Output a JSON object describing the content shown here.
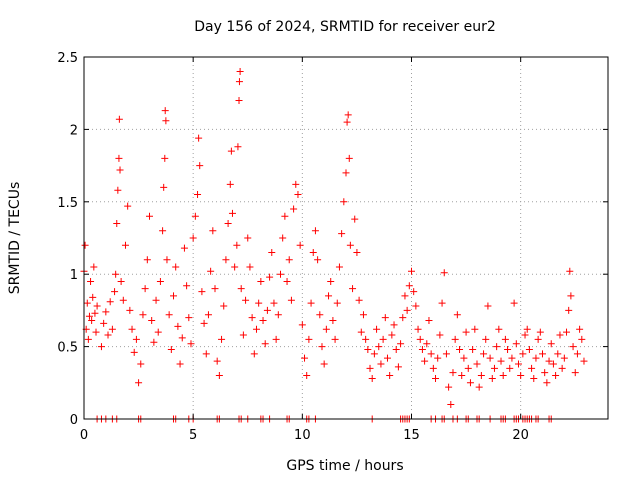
{
  "chart_data": {
    "type": "scatter",
    "title": "Day 156 of 2024, SRMTID for receiver eur2",
    "xlabel": "GPS time / hours",
    "ylabel": "SRMTID / TECUs",
    "xlim": [
      0,
      24
    ],
    "ylim": [
      0,
      2.5
    ],
    "xticks": [
      0,
      5,
      10,
      15,
      20
    ],
    "yticks": [
      0,
      0.5,
      1,
      1.5,
      2,
      2.5
    ],
    "grid": true,
    "marker": "+",
    "color": "#ff0000",
    "series": [
      {
        "name": "SRMTID",
        "points": [
          [
            0.0,
            1.02
          ],
          [
            0.05,
            1.2
          ],
          [
            0.1,
            0.62
          ],
          [
            0.15,
            0.8
          ],
          [
            0.2,
            0.55
          ],
          [
            0.25,
            0.71
          ],
          [
            0.3,
            0.95
          ],
          [
            0.35,
            0.68
          ],
          [
            0.4,
            0.84
          ],
          [
            0.45,
            1.05
          ],
          [
            0.5,
            0.73
          ],
          [
            0.55,
            0.6
          ],
          [
            0.6,
            0.78
          ],
          [
            0.8,
            0.5
          ],
          [
            0.9,
            0.66
          ],
          [
            1.0,
            0.74
          ],
          [
            1.1,
            0.58
          ],
          [
            1.2,
            0.81
          ],
          [
            1.3,
            0.62
          ],
          [
            1.4,
            0.88
          ],
          [
            1.45,
            1.0
          ],
          [
            1.5,
            1.35
          ],
          [
            1.55,
            1.58
          ],
          [
            1.6,
            1.8
          ],
          [
            1.62,
            2.07
          ],
          [
            1.65,
            1.72
          ],
          [
            1.7,
            0.95
          ],
          [
            1.8,
            0.82
          ],
          [
            1.9,
            1.2
          ],
          [
            2.0,
            1.47
          ],
          [
            2.1,
            0.75
          ],
          [
            2.2,
            0.62
          ],
          [
            2.3,
            0.46
          ],
          [
            2.4,
            0.55
          ],
          [
            2.5,
            0.25
          ],
          [
            2.6,
            0.38
          ],
          [
            2.7,
            0.72
          ],
          [
            2.8,
            0.9
          ],
          [
            2.9,
            1.1
          ],
          [
            3.0,
            1.4
          ],
          [
            3.1,
            0.68
          ],
          [
            3.2,
            0.53
          ],
          [
            3.3,
            0.82
          ],
          [
            3.4,
            0.6
          ],
          [
            3.5,
            0.95
          ],
          [
            3.6,
            1.3
          ],
          [
            3.65,
            1.6
          ],
          [
            3.7,
            1.8
          ],
          [
            3.72,
            2.13
          ],
          [
            3.75,
            2.06
          ],
          [
            3.8,
            1.1
          ],
          [
            3.9,
            0.72
          ],
          [
            4.0,
            0.48
          ],
          [
            4.1,
            0.85
          ],
          [
            4.2,
            1.05
          ],
          [
            4.3,
            0.64
          ],
          [
            4.4,
            0.38
          ],
          [
            4.5,
            0.56
          ],
          [
            4.6,
            1.18
          ],
          [
            4.7,
            0.92
          ],
          [
            4.8,
            0.7
          ],
          [
            4.9,
            0.52
          ],
          [
            5.0,
            1.25
          ],
          [
            5.1,
            1.4
          ],
          [
            5.2,
            1.55
          ],
          [
            5.25,
            1.94
          ],
          [
            5.3,
            1.75
          ],
          [
            5.4,
            0.88
          ],
          [
            5.5,
            0.66
          ],
          [
            5.6,
            0.45
          ],
          [
            5.7,
            0.72
          ],
          [
            5.8,
            1.02
          ],
          [
            5.9,
            1.3
          ],
          [
            6.0,
            0.9
          ],
          [
            6.1,
            0.4
          ],
          [
            6.2,
            0.3
          ],
          [
            6.3,
            0.55
          ],
          [
            6.4,
            0.78
          ],
          [
            6.5,
            1.1
          ],
          [
            6.6,
            1.35
          ],
          [
            6.7,
            1.62
          ],
          [
            6.75,
            1.85
          ],
          [
            6.8,
            1.42
          ],
          [
            6.9,
            1.05
          ],
          [
            7.0,
            1.2
          ],
          [
            7.05,
            1.88
          ],
          [
            7.1,
            2.2
          ],
          [
            7.12,
            2.33
          ],
          [
            7.15,
            2.4
          ],
          [
            7.2,
            0.9
          ],
          [
            7.3,
            0.58
          ],
          [
            7.4,
            0.82
          ],
          [
            7.5,
            1.25
          ],
          [
            7.6,
            1.05
          ],
          [
            7.7,
            0.7
          ],
          [
            7.8,
            0.45
          ],
          [
            7.9,
            0.62
          ],
          [
            8.0,
            0.8
          ],
          [
            8.1,
            0.95
          ],
          [
            8.2,
            0.68
          ],
          [
            8.3,
            0.52
          ],
          [
            8.4,
            0.75
          ],
          [
            8.5,
            0.98
          ],
          [
            8.6,
            1.15
          ],
          [
            8.7,
            0.8
          ],
          [
            8.8,
            0.55
          ],
          [
            8.9,
            0.72
          ],
          [
            9.0,
            1.0
          ],
          [
            9.1,
            1.25
          ],
          [
            9.2,
            1.4
          ],
          [
            9.3,
            0.95
          ],
          [
            9.4,
            1.1
          ],
          [
            9.5,
            0.82
          ],
          [
            9.6,
            1.45
          ],
          [
            9.7,
            1.62
          ],
          [
            9.8,
            1.55
          ],
          [
            9.9,
            1.2
          ],
          [
            10.0,
            0.65
          ],
          [
            10.1,
            0.42
          ],
          [
            10.2,
            0.3
          ],
          [
            10.3,
            0.55
          ],
          [
            10.4,
            0.8
          ],
          [
            10.5,
            1.15
          ],
          [
            10.6,
            1.3
          ],
          [
            10.7,
            1.1
          ],
          [
            10.8,
            0.72
          ],
          [
            10.9,
            0.5
          ],
          [
            11.0,
            0.38
          ],
          [
            11.1,
            0.62
          ],
          [
            11.2,
            0.85
          ],
          [
            11.3,
            0.95
          ],
          [
            11.4,
            0.68
          ],
          [
            11.5,
            0.55
          ],
          [
            11.6,
            0.8
          ],
          [
            11.7,
            1.05
          ],
          [
            11.8,
            1.28
          ],
          [
            11.9,
            1.5
          ],
          [
            12.0,
            1.7
          ],
          [
            12.05,
            2.05
          ],
          [
            12.1,
            2.1
          ],
          [
            12.15,
            1.8
          ],
          [
            12.2,
            1.2
          ],
          [
            12.3,
            0.9
          ],
          [
            12.4,
            1.38
          ],
          [
            12.5,
            1.15
          ],
          [
            12.6,
            0.82
          ],
          [
            12.7,
            0.6
          ],
          [
            12.8,
            0.72
          ],
          [
            12.9,
            0.55
          ],
          [
            13.0,
            0.48
          ],
          [
            13.1,
            0.35
          ],
          [
            13.2,
            0.28
          ],
          [
            13.3,
            0.45
          ],
          [
            13.4,
            0.62
          ],
          [
            13.5,
            0.5
          ],
          [
            13.6,
            0.38
          ],
          [
            13.7,
            0.55
          ],
          [
            13.8,
            0.7
          ],
          [
            13.9,
            0.42
          ],
          [
            14.0,
            0.3
          ],
          [
            14.1,
            0.58
          ],
          [
            14.2,
            0.65
          ],
          [
            14.3,
            0.48
          ],
          [
            14.4,
            0.36
          ],
          [
            14.5,
            0.52
          ],
          [
            14.6,
            0.7
          ],
          [
            14.7,
            0.85
          ],
          [
            14.8,
            0.75
          ],
          [
            14.9,
            0.92
          ],
          [
            15.0,
            1.02
          ],
          [
            15.1,
            0.88
          ],
          [
            15.2,
            0.78
          ],
          [
            15.3,
            0.62
          ],
          [
            15.4,
            0.55
          ],
          [
            15.5,
            0.48
          ],
          [
            15.6,
            0.4
          ],
          [
            15.7,
            0.52
          ],
          [
            15.8,
            0.68
          ],
          [
            15.9,
            0.45
          ],
          [
            16.0,
            0.35
          ],
          [
            16.1,
            0.28
          ],
          [
            16.2,
            0.42
          ],
          [
            16.3,
            0.58
          ],
          [
            16.4,
            0.8
          ],
          [
            16.5,
            1.01
          ],
          [
            16.6,
            0.45
          ],
          [
            16.7,
            0.22
          ],
          [
            16.8,
            0.1
          ],
          [
            16.9,
            0.32
          ],
          [
            17.0,
            0.55
          ],
          [
            17.1,
            0.72
          ],
          [
            17.2,
            0.48
          ],
          [
            17.3,
            0.3
          ],
          [
            17.4,
            0.42
          ],
          [
            17.5,
            0.6
          ],
          [
            17.6,
            0.35
          ],
          [
            17.7,
            0.25
          ],
          [
            17.8,
            0.48
          ],
          [
            17.9,
            0.62
          ],
          [
            18.0,
            0.38
          ],
          [
            18.1,
            0.22
          ],
          [
            18.2,
            0.3
          ],
          [
            18.3,
            0.45
          ],
          [
            18.4,
            0.55
          ],
          [
            18.5,
            0.78
          ],
          [
            18.6,
            0.42
          ],
          [
            18.7,
            0.28
          ],
          [
            18.8,
            0.35
          ],
          [
            18.9,
            0.5
          ],
          [
            19.0,
            0.62
          ],
          [
            19.1,
            0.4
          ],
          [
            19.2,
            0.3
          ],
          [
            19.3,
            0.55
          ],
          [
            19.4,
            0.48
          ],
          [
            19.5,
            0.35
          ],
          [
            19.6,
            0.42
          ],
          [
            19.7,
            0.8
          ],
          [
            19.8,
            0.52
          ],
          [
            19.9,
            0.38
          ],
          [
            20.0,
            0.3
          ],
          [
            20.1,
            0.45
          ],
          [
            20.2,
            0.58
          ],
          [
            20.3,
            0.62
          ],
          [
            20.4,
            0.48
          ],
          [
            20.5,
            0.35
          ],
          [
            20.6,
            0.28
          ],
          [
            20.7,
            0.42
          ],
          [
            20.8,
            0.55
          ],
          [
            20.9,
            0.6
          ],
          [
            21.0,
            0.45
          ],
          [
            21.1,
            0.32
          ],
          [
            21.2,
            0.25
          ],
          [
            21.3,
            0.4
          ],
          [
            21.4,
            0.52
          ],
          [
            21.5,
            0.38
          ],
          [
            21.6,
            0.3
          ],
          [
            21.7,
            0.45
          ],
          [
            21.8,
            0.58
          ],
          [
            21.9,
            0.35
          ],
          [
            22.0,
            0.42
          ],
          [
            22.1,
            0.6
          ],
          [
            22.2,
            0.75
          ],
          [
            22.25,
            1.02
          ],
          [
            22.3,
            0.85
          ],
          [
            22.4,
            0.5
          ],
          [
            22.5,
            0.32
          ],
          [
            22.6,
            0.45
          ],
          [
            22.7,
            0.62
          ],
          [
            22.8,
            0.55
          ],
          [
            22.9,
            0.4
          ]
        ],
        "zero_points": [
          0.6,
          0.8,
          1.0,
          1.3,
          1.5,
          2.5,
          2.6,
          4.1,
          4.2,
          4.8,
          5.0,
          6.1,
          6.2,
          7.1,
          7.2,
          7.5,
          8.1,
          8.2,
          8.5,
          9.3,
          9.4,
          10.2,
          10.3,
          10.6,
          13.2,
          14.5,
          14.6,
          14.7,
          14.8,
          14.9,
          15.9,
          16.1,
          16.4,
          16.5,
          16.9,
          17.1,
          17.5,
          17.6,
          18.0,
          18.1,
          18.6,
          19.1,
          19.2,
          19.3,
          19.7,
          19.8,
          19.9,
          20.1,
          20.2,
          20.3,
          20.4,
          20.5,
          20.7,
          20.8,
          21.3,
          21.4
        ]
      }
    ]
  }
}
